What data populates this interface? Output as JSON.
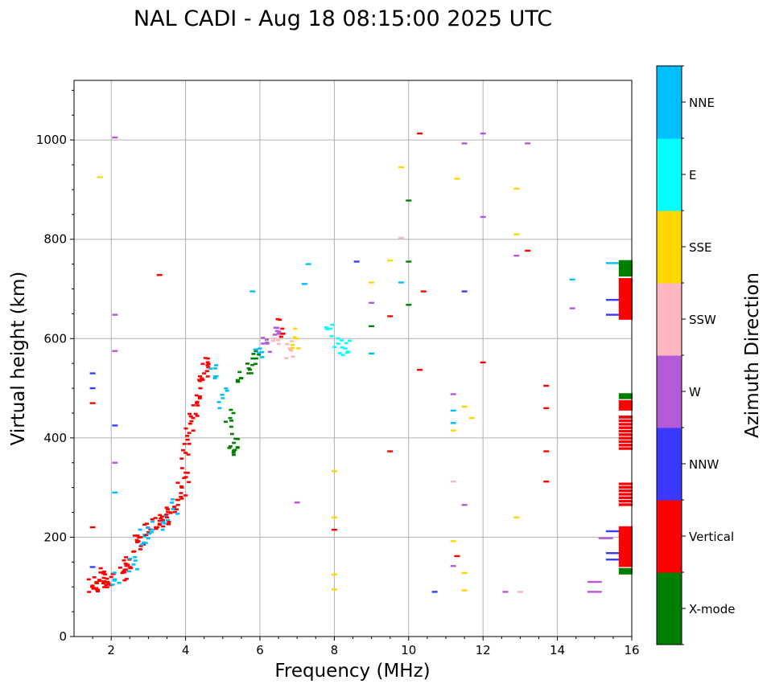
{
  "chart_data": {
    "type": "scatter",
    "title": "NAL CADI - Aug 18 08:15:00 2025 UTC",
    "xlabel": "Frequency (MHz)",
    "ylabel": "Virtual height (km)",
    "xlim": [
      1,
      16
    ],
    "ylim": [
      0,
      1120
    ],
    "xticks": [
      2,
      4,
      6,
      8,
      10,
      12,
      14,
      16
    ],
    "yticks": [
      0,
      200,
      400,
      600,
      800,
      1000
    ],
    "grid": true,
    "colorbar": {
      "label": "Azimuth Direction",
      "categories": [
        {
          "name": "X-mode",
          "color": "#008000"
        },
        {
          "name": "Vertical",
          "color": "#ff0000"
        },
        {
          "name": "NNW",
          "color": "#3a3aff"
        },
        {
          "name": "W",
          "color": "#b45ad6"
        },
        {
          "name": "SSW",
          "color": "#ffb6c1"
        },
        {
          "name": "SSE",
          "color": "#ffd700"
        },
        {
          "name": "E",
          "color": "#00ffff"
        },
        {
          "name": "NNE",
          "color": "#00bfff"
        }
      ]
    },
    "trace": [
      {
        "f": 1.5,
        "h": 100,
        "c": "Vertical"
      },
      {
        "f": 1.6,
        "h": 108,
        "c": "Vertical"
      },
      {
        "f": 1.7,
        "h": 112,
        "c": "Vertical"
      },
      {
        "f": 1.8,
        "h": 118,
        "c": "Vertical"
      },
      {
        "f": 1.9,
        "h": 110,
        "c": "Vertical"
      },
      {
        "f": 2.0,
        "h": 120,
        "c": "Vertical"
      },
      {
        "f": 2.1,
        "h": 115,
        "c": "NNE"
      },
      {
        "f": 2.3,
        "h": 128,
        "c": "Vertical"
      },
      {
        "f": 2.4,
        "h": 135,
        "c": "Vertical"
      },
      {
        "f": 2.5,
        "h": 140,
        "c": "Vertical"
      },
      {
        "f": 2.6,
        "h": 145,
        "c": "NNE"
      },
      {
        "f": 2.7,
        "h": 190,
        "c": "Vertical"
      },
      {
        "f": 2.8,
        "h": 200,
        "c": "Vertical"
      },
      {
        "f": 2.9,
        "h": 205,
        "c": "NNE"
      },
      {
        "f": 3.0,
        "h": 210,
        "c": "Vertical"
      },
      {
        "f": 3.1,
        "h": 215,
        "c": "NNE"
      },
      {
        "f": 3.2,
        "h": 220,
        "c": "Vertical"
      },
      {
        "f": 3.3,
        "h": 225,
        "c": "Vertical"
      },
      {
        "f": 3.4,
        "h": 232,
        "c": "NNE"
      },
      {
        "f": 3.5,
        "h": 240,
        "c": "Vertical"
      },
      {
        "f": 3.6,
        "h": 250,
        "c": "Vertical"
      },
      {
        "f": 3.7,
        "h": 260,
        "c": "NNE"
      },
      {
        "f": 3.8,
        "h": 275,
        "c": "Vertical"
      },
      {
        "f": 3.9,
        "h": 300,
        "c": "Vertical"
      },
      {
        "f": 4.0,
        "h": 330,
        "c": "Vertical"
      },
      {
        "f": 4.0,
        "h": 370,
        "c": "Vertical"
      },
      {
        "f": 4.1,
        "h": 410,
        "c": "Vertical"
      },
      {
        "f": 4.2,
        "h": 440,
        "c": "Vertical"
      },
      {
        "f": 4.3,
        "h": 470,
        "c": "Vertical"
      },
      {
        "f": 4.4,
        "h": 500,
        "c": "Vertical"
      },
      {
        "f": 4.5,
        "h": 530,
        "c": "Vertical"
      },
      {
        "f": 4.6,
        "h": 560,
        "c": "Vertical"
      },
      {
        "f": 4.8,
        "h": 540,
        "c": "NNE"
      },
      {
        "f": 5.0,
        "h": 480,
        "c": "NNE"
      },
      {
        "f": 5.2,
        "h": 440,
        "c": "X-mode"
      },
      {
        "f": 5.3,
        "h": 390,
        "c": "X-mode"
      },
      {
        "f": 5.4,
        "h": 380,
        "c": "X-mode"
      },
      {
        "f": 5.5,
        "h": 520,
        "c": "X-mode"
      },
      {
        "f": 5.7,
        "h": 540,
        "c": "X-mode"
      },
      {
        "f": 5.9,
        "h": 560,
        "c": "X-mode"
      },
      {
        "f": 6.0,
        "h": 580,
        "c": "NNE"
      },
      {
        "f": 6.2,
        "h": 590,
        "c": "W"
      },
      {
        "f": 6.4,
        "h": 600,
        "c": "SSW"
      },
      {
        "f": 6.5,
        "h": 610,
        "c": "W"
      },
      {
        "f": 6.6,
        "h": 620,
        "c": "Vertical"
      },
      {
        "f": 6.8,
        "h": 580,
        "c": "SSW"
      },
      {
        "f": 7.0,
        "h": 600,
        "c": "SSE"
      },
      {
        "f": 7.9,
        "h": 620,
        "c": "E"
      },
      {
        "f": 8.1,
        "h": 590,
        "c": "E"
      },
      {
        "f": 8.3,
        "h": 580,
        "c": "E"
      }
    ],
    "scatter": [
      {
        "f": 2.1,
        "h": 1005,
        "c": "W"
      },
      {
        "f": 10.3,
        "h": 1013,
        "c": "Vertical"
      },
      {
        "f": 12.0,
        "h": 1013,
        "c": "W"
      },
      {
        "f": 11.5,
        "h": 993,
        "c": "W"
      },
      {
        "f": 13.2,
        "h": 993,
        "c": "W"
      },
      {
        "f": 9.8,
        "h": 945,
        "c": "SSE"
      },
      {
        "f": 11.3,
        "h": 922,
        "c": "SSE"
      },
      {
        "f": 12.9,
        "h": 902,
        "c": "SSE"
      },
      {
        "f": 10.0,
        "h": 878,
        "c": "X-mode"
      },
      {
        "f": 12.0,
        "h": 845,
        "c": "W"
      },
      {
        "f": 12.9,
        "h": 810,
        "c": "SSE"
      },
      {
        "f": 9.8,
        "h": 803,
        "c": "SSW"
      },
      {
        "f": 13.2,
        "h": 777,
        "c": "Vertical"
      },
      {
        "f": 12.9,
        "h": 767,
        "c": "W"
      },
      {
        "f": 8.6,
        "h": 755,
        "c": "NNW"
      },
      {
        "f": 9.5,
        "h": 757,
        "c": "SSE"
      },
      {
        "f": 10.0,
        "h": 755,
        "c": "X-mode"
      },
      {
        "f": 9.0,
        "h": 713,
        "c": "SSE"
      },
      {
        "f": 9.8,
        "h": 713,
        "c": "NNE"
      },
      {
        "f": 14.4,
        "h": 719,
        "c": "NNE"
      },
      {
        "f": 10.4,
        "h": 695,
        "c": "Vertical"
      },
      {
        "f": 11.5,
        "h": 695,
        "c": "NNW"
      },
      {
        "f": 9.0,
        "h": 672,
        "c": "W"
      },
      {
        "f": 10.0,
        "h": 668,
        "c": "X-mode"
      },
      {
        "f": 14.4,
        "h": 661,
        "c": "W"
      },
      {
        "f": 9.5,
        "h": 645,
        "c": "Vertical"
      },
      {
        "f": 9.0,
        "h": 625,
        "c": "X-mode"
      },
      {
        "f": 9.0,
        "h": 570,
        "c": "NNE"
      },
      {
        "f": 12.0,
        "h": 552,
        "c": "Vertical"
      },
      {
        "f": 10.3,
        "h": 537,
        "c": "Vertical"
      },
      {
        "f": 13.7,
        "h": 505,
        "c": "Vertical"
      },
      {
        "f": 11.2,
        "h": 488,
        "c": "W"
      },
      {
        "f": 11.5,
        "h": 463,
        "c": "SSE"
      },
      {
        "f": 13.7,
        "h": 460,
        "c": "Vertical"
      },
      {
        "f": 11.2,
        "h": 455,
        "c": "NNE"
      },
      {
        "f": 11.7,
        "h": 440,
        "c": "SSE"
      },
      {
        "f": 11.2,
        "h": 430,
        "c": "NNE"
      },
      {
        "f": 11.2,
        "h": 415,
        "c": "SSE"
      },
      {
        "f": 9.5,
        "h": 373,
        "c": "Vertical"
      },
      {
        "f": 13.7,
        "h": 373,
        "c": "Vertical"
      },
      {
        "f": 8.0,
        "h": 333,
        "c": "SSE"
      },
      {
        "f": 11.2,
        "h": 312,
        "c": "SSW"
      },
      {
        "f": 13.7,
        "h": 312,
        "c": "Vertical"
      },
      {
        "f": 7.0,
        "h": 270,
        "c": "W"
      },
      {
        "f": 11.5,
        "h": 265,
        "c": "W"
      },
      {
        "f": 8.0,
        "h": 240,
        "c": "SSE"
      },
      {
        "f": 12.9,
        "h": 240,
        "c": "SSE"
      },
      {
        "f": 8.0,
        "h": 215,
        "c": "Vertical"
      },
      {
        "f": 11.2,
        "h": 192,
        "c": "SSE"
      },
      {
        "f": 11.3,
        "h": 162,
        "c": "Vertical"
      },
      {
        "f": 11.2,
        "h": 142,
        "c": "W"
      },
      {
        "f": 11.5,
        "h": 128,
        "c": "SSE"
      },
      {
        "f": 8.0,
        "h": 125,
        "c": "SSE"
      },
      {
        "f": 15.0,
        "h": 110,
        "c": "W"
      },
      {
        "f": 8.0,
        "h": 95,
        "c": "SSE"
      },
      {
        "f": 10.7,
        "h": 90,
        "c": "NNW"
      },
      {
        "f": 11.5,
        "h": 93,
        "c": "SSE"
      },
      {
        "f": 12.6,
        "h": 90,
        "c": "W"
      },
      {
        "f": 13.0,
        "h": 90,
        "c": "SSW"
      },
      {
        "f": 15.0,
        "h": 90,
        "c": "W"
      },
      {
        "f": 1.5,
        "h": 530,
        "c": "NNW"
      },
      {
        "f": 1.5,
        "h": 500,
        "c": "NNW"
      },
      {
        "f": 1.5,
        "h": 470,
        "c": "Vertical"
      },
      {
        "f": 1.5,
        "h": 220,
        "c": "Vertical"
      },
      {
        "f": 1.5,
        "h": 140,
        "c": "NNW"
      },
      {
        "f": 2.1,
        "h": 425,
        "c": "NNW"
      },
      {
        "f": 2.1,
        "h": 350,
        "c": "W"
      },
      {
        "f": 2.1,
        "h": 290,
        "c": "NNE"
      },
      {
        "f": 2.1,
        "h": 575,
        "c": "W"
      },
      {
        "f": 2.1,
        "h": 648,
        "c": "W"
      },
      {
        "f": 1.7,
        "h": 925,
        "c": "SSE"
      },
      {
        "f": 3.3,
        "h": 728,
        "c": "Vertical"
      },
      {
        "f": 7.3,
        "h": 750,
        "c": "NNE"
      },
      {
        "f": 7.2,
        "h": 710,
        "c": "NNE"
      },
      {
        "f": 5.8,
        "h": 695,
        "c": "NNE"
      },
      {
        "f": 15.5,
        "h": 752,
        "c": "NNE"
      },
      {
        "f": 15.5,
        "h": 678,
        "c": "NNW"
      },
      {
        "f": 15.5,
        "h": 648,
        "c": "NNW"
      },
      {
        "f": 15.5,
        "h": 212,
        "c": "NNW"
      },
      {
        "f": 15.5,
        "h": 168,
        "c": "NNW"
      },
      {
        "f": 15.5,
        "h": 155,
        "c": "NNW"
      },
      {
        "f": 15.3,
        "h": 198,
        "c": "W"
      }
    ],
    "edge_column": [
      {
        "h0": 725,
        "h1": 758,
        "c": "X-mode"
      },
      {
        "h0": 638,
        "h1": 722,
        "c": "Vertical"
      },
      {
        "h0": 478,
        "h1": 490,
        "c": "X-mode"
      },
      {
        "h0": 455,
        "h1": 476,
        "c": "Vertical"
      },
      {
        "h0": 375,
        "h1": 445,
        "c": "Vertical"
      },
      {
        "h0": 262,
        "h1": 310,
        "c": "Vertical"
      },
      {
        "h0": 140,
        "h1": 222,
        "c": "Vertical"
      },
      {
        "h0": 125,
        "h1": 138,
        "c": "X-mode"
      }
    ]
  }
}
